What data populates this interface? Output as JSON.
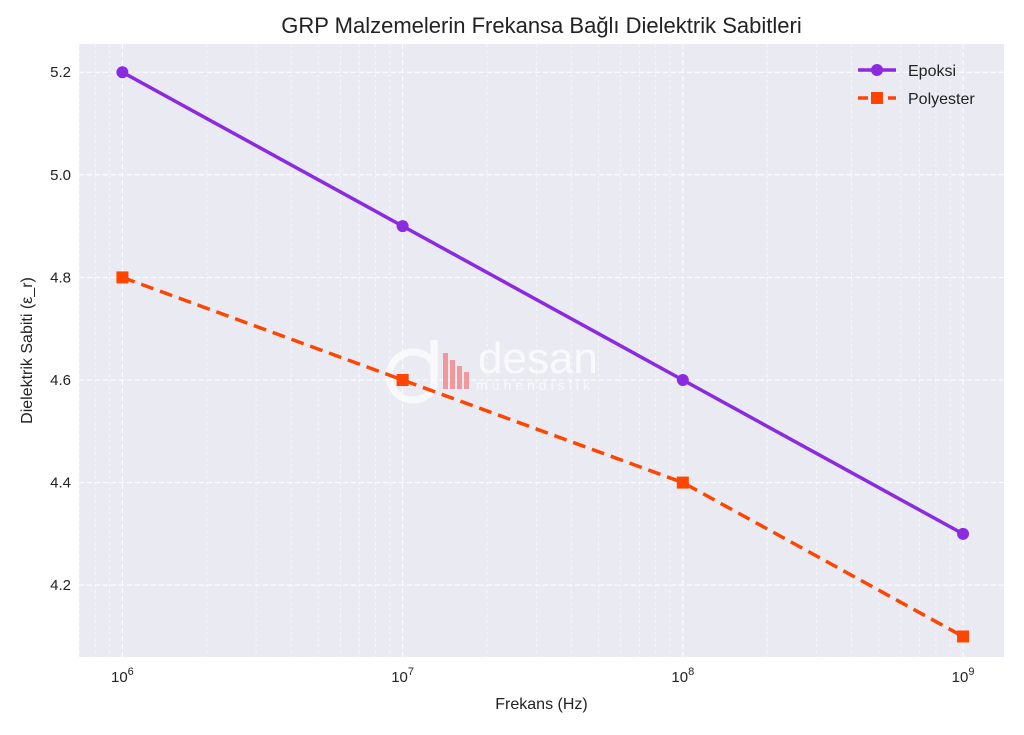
{
  "watermark": {
    "brand": "desan",
    "tagline": "mühendislik"
  },
  "chart_data": {
    "type": "line",
    "title": "GRP Malzemelerin Frekansa Bağlı Dielektrik Sabitleri",
    "xlabel": "Frekans (Hz)",
    "ylabel": "Dielektrik Sabiti (ε_r)",
    "xscale": "log",
    "xlim": [
      700000,
      1400000000
    ],
    "ylim": [
      4.06,
      5.255
    ],
    "x": [
      1000000,
      10000000,
      100000000,
      1000000000
    ],
    "x_ticks": [
      {
        "value": 1000000,
        "base": "10",
        "exp": "6"
      },
      {
        "value": 10000000,
        "base": "10",
        "exp": "7"
      },
      {
        "value": 100000000,
        "base": "10",
        "exp": "8"
      },
      {
        "value": 1000000000,
        "base": "10",
        "exp": "9"
      }
    ],
    "y_ticks": [
      4.2,
      4.4,
      4.6,
      4.8,
      5.0,
      5.2
    ],
    "y_tick_labels": [
      "4.2",
      "4.4",
      "4.6",
      "4.8",
      "5.0",
      "5.2"
    ],
    "grid": true,
    "legend_position": "top-right",
    "series": [
      {
        "name": "Epoksi",
        "values": [
          5.2,
          4.9,
          4.6,
          4.3
        ],
        "color": "#8a2be2",
        "line_style": "solid",
        "marker": "circle"
      },
      {
        "name": "Polyester",
        "values": [
          4.8,
          4.6,
          4.4,
          4.1
        ],
        "color": "#ff4500",
        "line_style": "dashed",
        "marker": "square"
      }
    ]
  },
  "colors": {
    "plot_background": "#eaeaf2",
    "grid": "#ffffff"
  }
}
